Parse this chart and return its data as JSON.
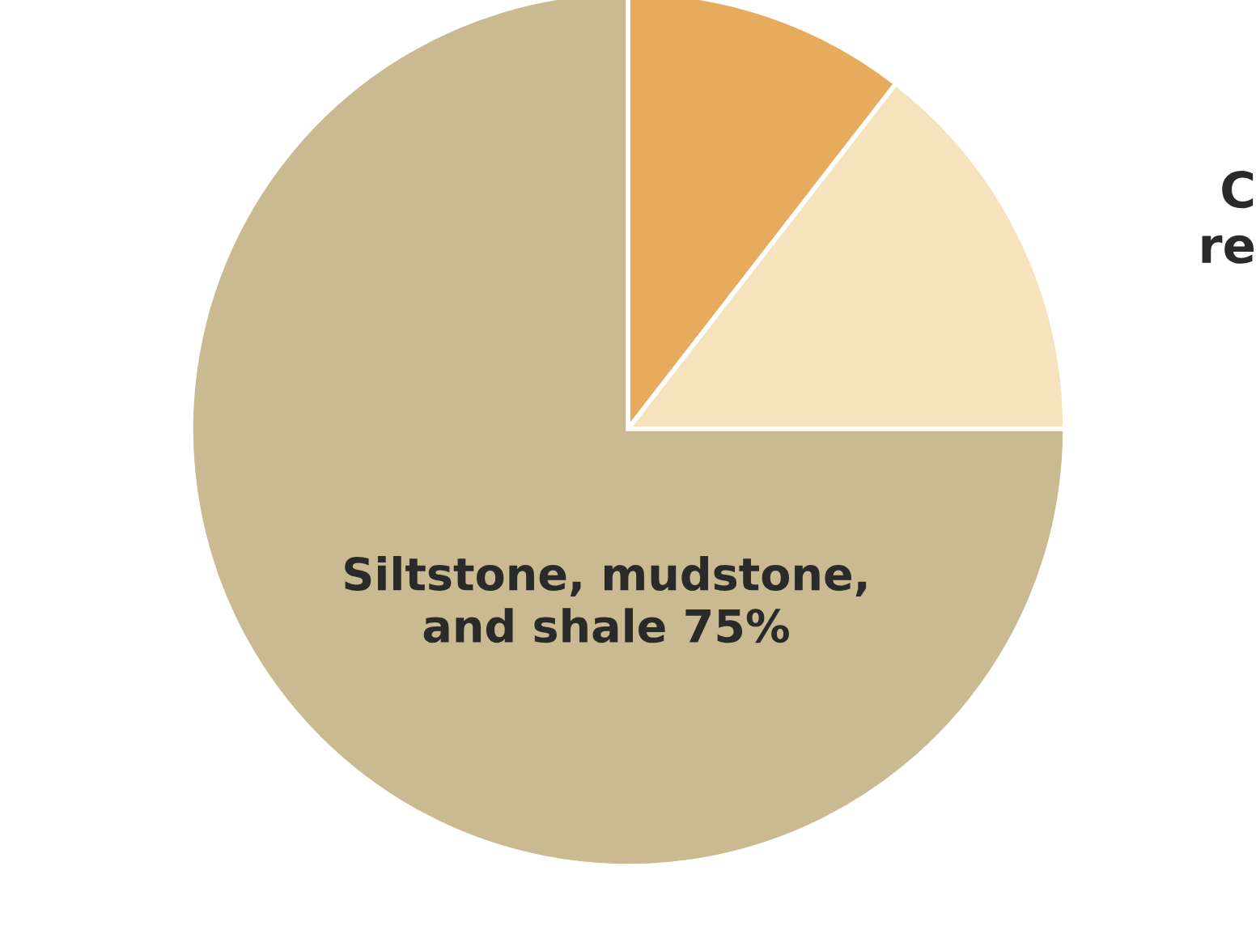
{
  "chart_data": {
    "type": "pie",
    "categories": [
      "Siltstone, mudstone,\nand shale",
      null,
      null
    ],
    "values": [
      75,
      10.5,
      14.5
    ],
    "colors": [
      "#c9ba92",
      "#e6ab5c",
      "#f6e3bd"
    ],
    "value_labels": [
      "75%",
      null,
      null
    ],
    "annotations": [
      "C\nre"
    ]
  }
}
